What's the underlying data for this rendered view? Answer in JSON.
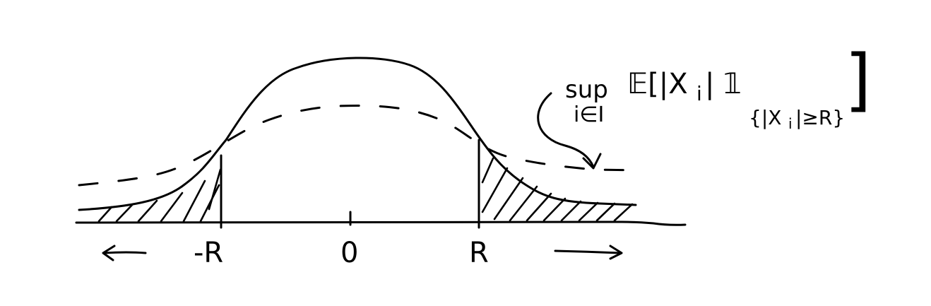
{
  "axis": {
    "left_label": "-R",
    "center_label": "0",
    "right_label": "R"
  },
  "annotation": {
    "sup": "sup",
    "index": "i∈I",
    "expectation": "𝔼[|X",
    "sub_i": "i",
    "indicator": "| 𝟙",
    "set": "{|X",
    "set_rest": "|≥R}",
    "close_bracket": "]"
  }
}
